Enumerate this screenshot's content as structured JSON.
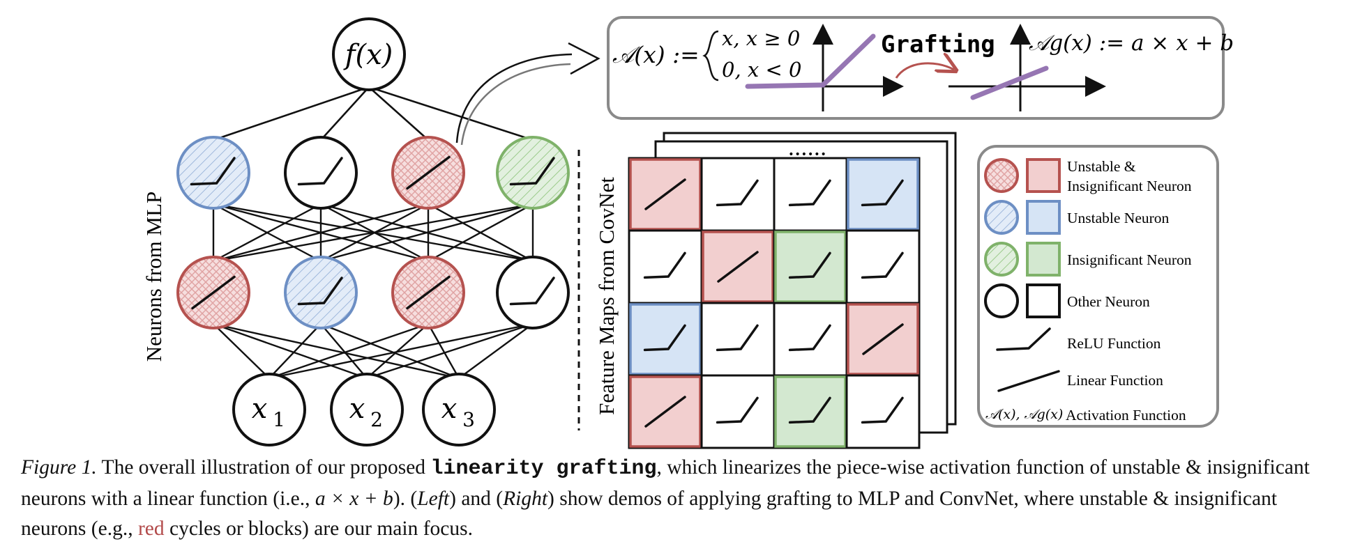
{
  "mlp": {
    "output_label": "f(x)",
    "inputs": [
      {
        "base": "x",
        "sub": "1"
      },
      {
        "base": "x",
        "sub": "2"
      },
      {
        "base": "x",
        "sub": "3"
      }
    ],
    "side_label": "Neurons from MLP",
    "hidden_layer_top": [
      {
        "kind": "unstable",
        "fn": "relu"
      },
      {
        "kind": "other",
        "fn": "relu"
      },
      {
        "kind": "unstable_insignificant",
        "fn": "linear"
      },
      {
        "kind": "insignificant",
        "fn": "relu"
      }
    ],
    "hidden_layer_bottom": [
      {
        "kind": "unstable_insignificant",
        "fn": "linear"
      },
      {
        "kind": "unstable",
        "fn": "relu"
      },
      {
        "kind": "unstable_insignificant",
        "fn": "linear"
      },
      {
        "kind": "other",
        "fn": "relu"
      }
    ]
  },
  "grafting_box": {
    "activation_def": "𝒜(x) :=",
    "case_1": "x,  x ≥ 0",
    "case_2": "0,  x < 0",
    "grafting_label": "Grafting",
    "grafted_def": "𝒜g(x) := a × x + b"
  },
  "convnet": {
    "side_label": "Feature Maps from CovNet",
    "stack_dots": "••••••",
    "grid": [
      [
        {
          "kind": "unstable_insignificant",
          "fn": "linear"
        },
        {
          "kind": "other",
          "fn": "relu"
        },
        {
          "kind": "other",
          "fn": "relu"
        },
        {
          "kind": "unstable",
          "fn": "relu"
        }
      ],
      [
        {
          "kind": "other",
          "fn": "relu"
        },
        {
          "kind": "unstable_insignificant",
          "fn": "linear"
        },
        {
          "kind": "insignificant",
          "fn": "relu"
        },
        {
          "kind": "other",
          "fn": "relu"
        }
      ],
      [
        {
          "kind": "unstable",
          "fn": "relu"
        },
        {
          "kind": "other",
          "fn": "relu"
        },
        {
          "kind": "other",
          "fn": "relu"
        },
        {
          "kind": "unstable_insignificant",
          "fn": "linear"
        }
      ],
      [
        {
          "kind": "unstable_insignificant",
          "fn": "linear"
        },
        {
          "kind": "other",
          "fn": "relu"
        },
        {
          "kind": "insignificant",
          "fn": "relu"
        },
        {
          "kind": "other",
          "fn": "relu"
        }
      ]
    ]
  },
  "legend": [
    {
      "kind": "unstable_insignificant",
      "label_line1": "Unstable &",
      "label_line2": "Insignificant Neuron"
    },
    {
      "kind": "unstable",
      "label_line1": "Unstable Neuron",
      "label_line2": ""
    },
    {
      "kind": "insignificant",
      "label_line1": "Insignificant Neuron",
      "label_line2": ""
    },
    {
      "kind": "other",
      "label_line1": "Other Neuron",
      "label_line2": ""
    },
    {
      "kind": "relu_fn",
      "label_line1": "ReLU Function",
      "label_line2": ""
    },
    {
      "kind": "linear_fn",
      "label_line1": "Linear Function",
      "label_line2": ""
    },
    {
      "kind": "activation",
      "symbol": "𝒜(x), 𝒜g(x)",
      "label_line1": "Activation Function",
      "label_line2": ""
    }
  ],
  "colors": {
    "red_stroke": "#b5524f",
    "red_fill": "#f2cfcf",
    "blue_stroke": "#6d8fc4",
    "blue_fill": "#d6e4f5",
    "green_stroke": "#7fb26a",
    "green_fill": "#d3e8d0",
    "purple": "#9676b3",
    "ink": "#111111"
  },
  "caption": {
    "label": "Figure 1.",
    "part1": " The overall illustration of our proposed ",
    "code": "linearity grafting",
    "part2": ", which linearizes the piece-wise activation function of unstable & insignificant neurons with a linear function (i.e., ",
    "math": "a × x + b",
    "part3": "). (",
    "left": "Left",
    "part4": ") and (",
    "right": "Right",
    "part5": ") show demos of applying grafting to MLP and ConvNet, where unstable & insignificant neurons (e.g., ",
    "red_word": "red",
    "part6": " cycles or blocks) are our main focus."
  }
}
